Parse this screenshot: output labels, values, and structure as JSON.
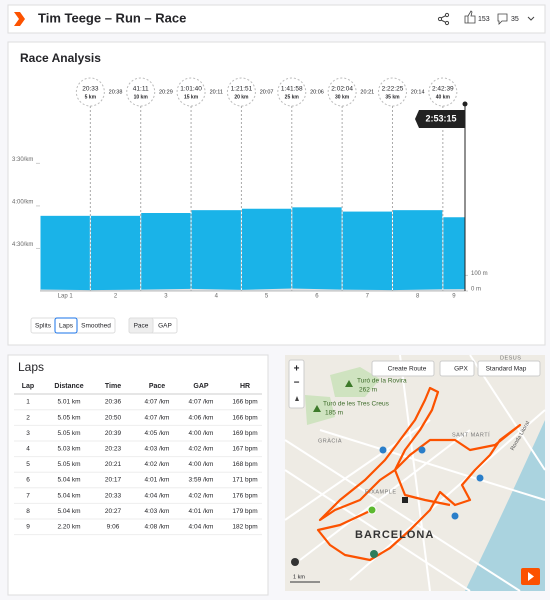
{
  "header": {
    "title": "Tim Teege – Run – Race",
    "kudos": "153",
    "comments": "35"
  },
  "chart_data": {
    "type": "bar",
    "title": "Race Analysis",
    "categories": [
      "Lap 1",
      "2",
      "3",
      "4",
      "5",
      "6",
      "7",
      "8",
      "9"
    ],
    "bins": [
      0,
      5,
      10,
      15,
      20,
      25,
      30,
      35,
      40,
      42.2
    ],
    "values": [
      247,
      247,
      245,
      243,
      242,
      241,
      244,
      243,
      248
    ],
    "color": "#1ab3e8",
    "xlim": [
      0,
      42.2
    ],
    "ylim": [
      300,
      190
    ],
    "yticks": [
      {
        "value": 210,
        "label": "3:30/km"
      },
      {
        "value": 240,
        "label": "4:00/km"
      },
      {
        "value": 270,
        "label": "4:30/km"
      }
    ],
    "grid": false,
    "splits": [
      {
        "x": 5,
        "time": "20:33",
        "label": "5 km"
      },
      {
        "x": 10,
        "time": "41:11",
        "label": "10 km"
      },
      {
        "x": 15,
        "time": "1:01:40",
        "label": "15 km"
      },
      {
        "x": 20,
        "time": "1:21:51",
        "label": "20 km"
      },
      {
        "x": 25,
        "time": "1:41:58",
        "label": "25 km"
      },
      {
        "x": 30,
        "time": "2:02:04",
        "label": "30 km"
      },
      {
        "x": 35,
        "time": "2:22:25",
        "label": "35 km"
      },
      {
        "x": 40,
        "time": "2:42:39",
        "label": "40 km"
      }
    ],
    "split_times": [
      "20:38",
      "20:29",
      "20:11",
      "20:07",
      "20:06",
      "20:21",
      "20:14"
    ],
    "finish": {
      "x": 42.2,
      "time": "2:53:15"
    },
    "elevation": {
      "x": [
        0,
        5,
        10,
        15,
        20,
        25,
        30,
        35,
        40,
        42.2
      ],
      "values": [
        10,
        6,
        9,
        14,
        7,
        16,
        9,
        6,
        11,
        12
      ],
      "color": "#dde1e4"
    },
    "y2lim": [
      0,
      1000
    ],
    "y2ticks": [
      {
        "value": 100,
        "label": "100 m"
      },
      {
        "value": 0,
        "label": "0 m"
      }
    ]
  },
  "controls": {
    "modes": [
      "Splits",
      "Laps",
      "Smoothed"
    ],
    "mode_selected": 1,
    "metrics": [
      "Pace",
      "GAP"
    ],
    "metric_selected": 0
  },
  "laps": {
    "title": "Laps",
    "columns": [
      "Lap",
      "Distance",
      "Time",
      "Pace",
      "GAP",
      "HR"
    ],
    "rows": [
      [
        "1",
        "5.01 km",
        "20:36",
        "4:07 /km",
        "4:07 /km",
        "166 bpm"
      ],
      [
        "2",
        "5.05 km",
        "20:50",
        "4:07 /km",
        "4:06 /km",
        "166 bpm"
      ],
      [
        "3",
        "5.05 km",
        "20:39",
        "4:05 /km",
        "4:00 /km",
        "169 bpm"
      ],
      [
        "4",
        "5.03 km",
        "20:23",
        "4:03 /km",
        "4:02 /km",
        "167 bpm"
      ],
      [
        "5",
        "5.05 km",
        "20:21",
        "4:02 /km",
        "4:00 /km",
        "168 bpm"
      ],
      [
        "6",
        "5.04 km",
        "20:17",
        "4:01 /km",
        "3:59 /km",
        "171 bpm"
      ],
      [
        "7",
        "5.04 km",
        "20:33",
        "4:04 /km",
        "4:02 /km",
        "176 bpm"
      ],
      [
        "8",
        "5.04 km",
        "20:27",
        "4:03 /km",
        "4:01 /km",
        "179 bpm"
      ],
      [
        "9",
        "2.20 km",
        "9:06",
        "4:08 /km",
        "4:04 /km",
        "182 bpm"
      ]
    ]
  },
  "map": {
    "buttons": [
      "Create Route",
      "GPX",
      "Standard Map"
    ],
    "places": [
      {
        "name": "Turó de la Rovira",
        "elevation": "262 m"
      },
      {
        "name": "Turó de les Tres Creus",
        "elevation": "185 m"
      }
    ],
    "districts": [
      "GRÀCIA",
      "EIXAMPLE",
      "SANT MARTÍ",
      "DESUS"
    ],
    "city": "BARCELONA",
    "road": "Ronda Litoral",
    "scale": "1 km",
    "zoom": [
      "+",
      "−"
    ]
  }
}
